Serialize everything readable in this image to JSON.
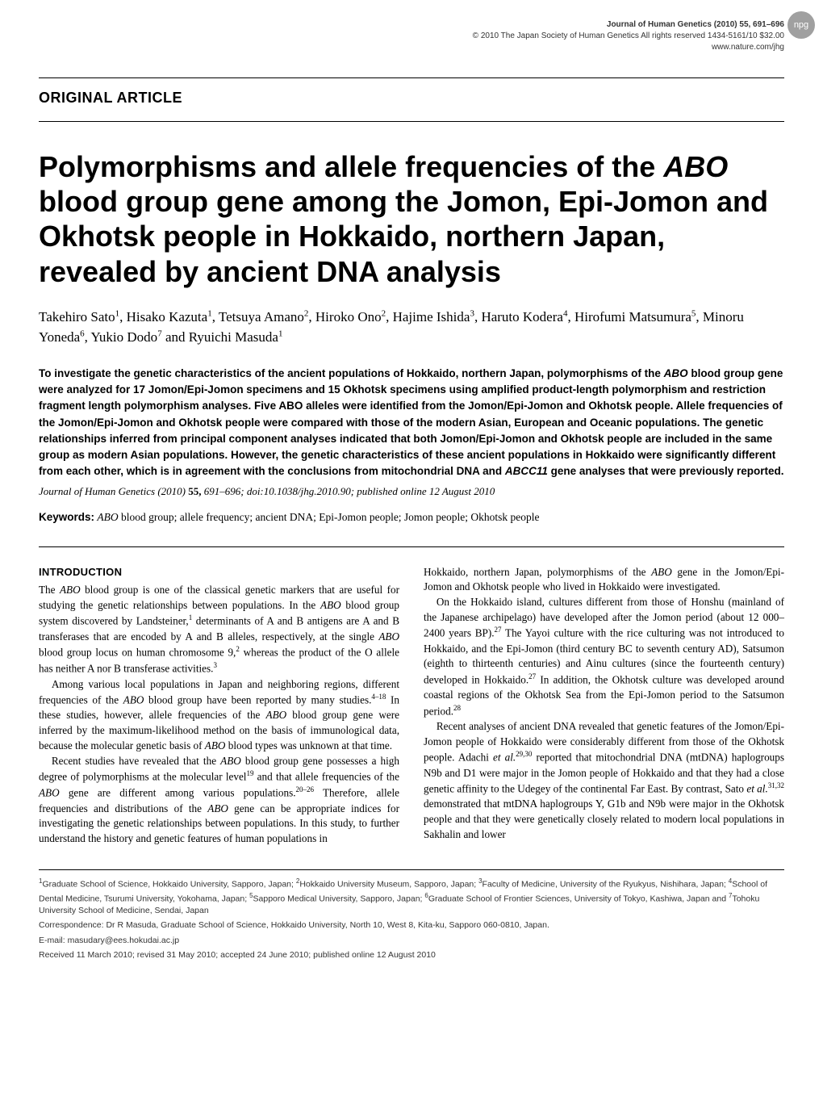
{
  "header": {
    "journal": "Journal of Human Genetics (2010) 55, 691–696",
    "copyright": "© 2010 The Japan Society of Human Genetics  All rights reserved 1434-5161/10 $32.00",
    "url": "www.nature.com/jhg",
    "logo_text": "npg"
  },
  "article_type": "ORIGINAL ARTICLE",
  "title_pre": "Polymorphisms and allele frequencies of the ",
  "title_gene": "ABO",
  "title_post": " blood group gene among the Jomon, Epi-Jomon and Okhotsk people in Hokkaido, northern Japan, revealed by ancient DNA analysis",
  "authors_html": "Takehiro Sato<sup>1</sup>, Hisako Kazuta<sup>1</sup>, Tetsuya Amano<sup>2</sup>, Hiroko Ono<sup>2</sup>, Hajime Ishida<sup>3</sup>, Haruto Kodera<sup>4</sup>, Hirofumi Matsumura<sup>5</sup>, Minoru Yoneda<sup>6</sup>, Yukio Dodo<sup>7</sup> and Ryuichi Masuda<sup>1</sup>",
  "abstract_html": "To investigate the genetic characteristics of the ancient populations of Hokkaido, northern Japan, polymorphisms of the <span class=\"italic\">ABO</span> blood group gene were analyzed for 17 Jomon/Epi-Jomon specimens and 15 Okhotsk specimens using amplified product-length polymorphism and restriction fragment length polymorphism analyses. Five ABO alleles were identified from the Jomon/Epi-Jomon and Okhotsk people. Allele frequencies of the Jomon/Epi-Jomon and Okhotsk people were compared with those of the modern Asian, European and Oceanic populations. The genetic relationships inferred from principal component analyses indicated that both Jomon/Epi-Jomon and Okhotsk people are included in the same group as modern Asian populations. However, the genetic characteristics of these ancient populations in Hokkaido were significantly different from each other, which is in agreement with the conclusions from mitochondrial DNA and <span class=\"italic\">ABCC11</span> gene analyses that were previously reported.",
  "citation_html": "<span class=\"italic\">Journal of Human Genetics</span> (2010) <span class=\"bold\">55,</span> 691–696; doi:10.1038/jhg.2010.90; published online 12 August 2010",
  "keywords_label": "Keywords:",
  "keywords_html": "<span class=\"italic\">ABO</span> blood group; allele frequency; ancient DNA; Epi-Jomon people; Jomon people; Okhotsk people",
  "section_heading": "INTRODUCTION",
  "col_left_html": "<p>The <span class=\"italic\">ABO</span> blood group is one of the classical genetic markers that are useful for studying the genetic relationships between populations. In the <span class=\"italic\">ABO</span> blood group system discovered by Landsteiner,<sup>1</sup> determinants of A and B antigens are A and B transferases that are encoded by A and B alleles, respectively, at the single <span class=\"italic\">ABO</span> blood group locus on human chromosome 9,<sup>2</sup> whereas the product of the O allele has neither A nor B transferase activities.<sup>3</sup></p><p>Among various local populations in Japan and neighboring regions, different frequencies of the <span class=\"italic\">ABO</span> blood group have been reported by many studies.<sup>4–18</sup> In these studies, however, allele frequencies of the <span class=\"italic\">ABO</span> blood group gene were inferred by the maximum-likelihood method on the basis of immunological data, because the molecular genetic basis of <span class=\"italic\">ABO</span> blood types was unknown at that time.</p><p>Recent studies have revealed that the <span class=\"italic\">ABO</span> blood group gene possesses a high degree of polymorphisms at the molecular level<sup>19</sup> and that allele frequencies of the <span class=\"italic\">ABO</span> gene are different among various populations.<sup>20–26</sup> Therefore, allele frequencies and distributions of the <span class=\"italic\">ABO</span> gene can be appropriate indices for investigating the genetic relationships between populations. In this study, to further understand the history and genetic features of human populations in</p>",
  "col_right_html": "<p>Hokkaido, northern Japan, polymorphisms of the <span class=\"italic\">ABO</span> gene in the Jomon/Epi-Jomon and Okhotsk people who lived in Hokkaido were investigated.</p><p>On the Hokkaido island, cultures different from those of Honshu (mainland of the Japanese archipelago) have developed after the Jomon period (about 12 000–2400 years BP).<sup>27</sup> The Yayoi culture with the rice culturing was not introduced to Hokkaido, and the Epi-Jomon (third century BC to seventh century AD), Satsumon (eighth to thirteenth centuries) and Ainu cultures (since the fourteenth century) developed in Hokkaido.<sup>27</sup> In addition, the Okhotsk culture was developed around coastal regions of the Okhotsk Sea from the Epi-Jomon period to the Satsumon period.<sup>28</sup></p><p>Recent analyses of ancient DNA revealed that genetic features of the Jomon/Epi-Jomon people of Hokkaido were considerably different from those of the Okhotsk people. Adachi <span class=\"italic\">et al.</span><sup>29,30</sup> reported that mitochondrial DNA (mtDNA) haplogroups N9b and D1 were major in the Jomon people of Hokkaido and that they had a close genetic affinity to the Udegey of the continental Far East. By contrast, Sato <span class=\"italic\">et al.</span><sup>31,32</sup> demonstrated that mtDNA haplogroups Y, G1b and N9b were major in the Okhotsk people and that they were genetically closely related to modern local populations in Sakhalin and lower</p>",
  "affiliations_html": "<sup>1</sup>Graduate School of Science, Hokkaido University, Sapporo, Japan; <sup>2</sup>Hokkaido University Museum, Sapporo, Japan; <sup>3</sup>Faculty of Medicine, University of the Ryukyus, Nishihara, Japan; <sup>4</sup>School of Dental Medicine, Tsurumi University, Yokohama, Japan; <sup>5</sup>Sapporo Medical University, Sapporo, Japan; <sup>6</sup>Graduate School of Frontier Sciences, University of Tokyo, Kashiwa, Japan and <sup>7</sup>Tohoku University School of Medicine, Sendai, Japan",
  "correspondence": "Correspondence: Dr R Masuda, Graduate School of Science, Hokkaido University, North 10, West 8, Kita-ku, Sapporo 060-0810, Japan.",
  "email": "E-mail: masudary@ees.hokudai.ac.jp",
  "received": "Received 11 March 2010; revised 31 May 2010; accepted 24 June 2010; published online 12 August 2010"
}
